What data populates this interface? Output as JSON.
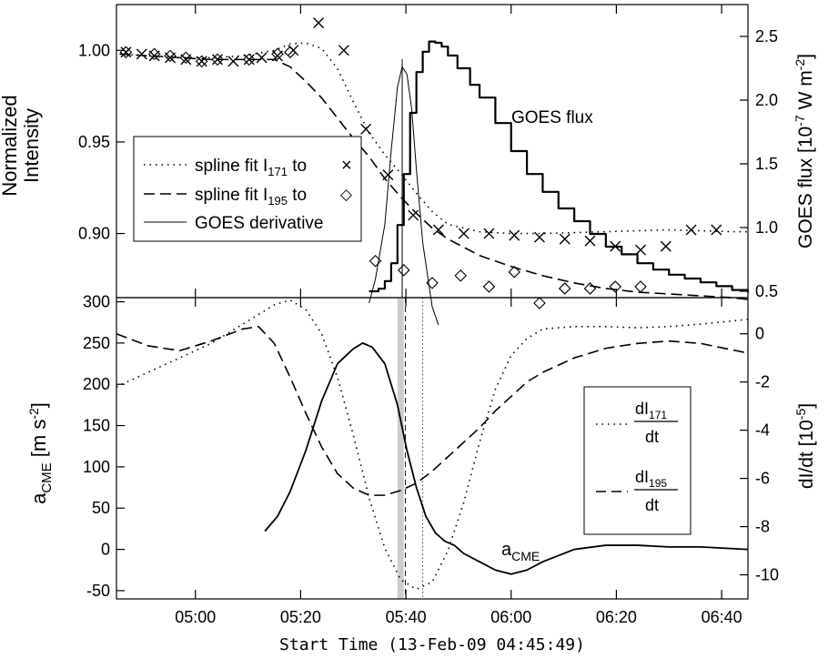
{
  "chart_data": [
    {
      "id": "top",
      "type": "line",
      "ylabel": [
        "Normalized",
        "Intensity"
      ],
      "y2label_prefix": "GOES flux [10",
      "y2label_exp1": "-7",
      "y2label_mid": " W m",
      "y2label_exp2": "-2",
      "y2label_suffix": "]",
      "xlim": [
        4.75,
        6.75
      ],
      "ylim": [
        0.865,
        1.025
      ],
      "y2lim": [
        0.45,
        2.75
      ],
      "yticks": [
        0.9,
        0.95,
        1.0
      ],
      "ytick_labels": [
        "0.90",
        "0.95",
        "1.00"
      ],
      "y2ticks": [
        0.5,
        1.0,
        1.5,
        2.0,
        2.5
      ],
      "y2tick_labels": [
        "0.5",
        "1.0",
        "1.5",
        "2.0",
        "2.5"
      ],
      "legend": {
        "position": "center-left",
        "entries": [
          {
            "style": "dotted",
            "label": "spline fit I",
            "sub": "171",
            "suffix": " to",
            "marker": "×"
          },
          {
            "style": "dashed",
            "label": "spline fit I",
            "sub": "195",
            "suffix": " to",
            "marker": "◇"
          },
          {
            "style": "solid-thin",
            "label": "GOES derivative"
          }
        ]
      },
      "annotation": "GOES flux",
      "series": [
        {
          "style": "dotted",
          "axis": "y",
          "x": [
            4.76,
            4.85,
            4.95,
            5.05,
            5.15,
            5.25,
            5.3,
            5.35,
            5.4,
            5.45,
            5.5,
            5.55,
            5.6,
            5.65,
            5.7,
            5.75,
            5.8,
            5.9,
            6.0,
            6.1,
            6.2,
            6.3,
            6.4,
            6.5,
            6.6,
            6.7,
            6.75
          ],
          "y": [
            0.998,
            0.997,
            0.996,
            0.996,
            0.997,
            1.0,
            1.0035,
            1.004,
            1.001,
            0.99,
            0.972,
            0.955,
            0.943,
            0.933,
            0.922,
            0.912,
            0.905,
            0.901,
            0.9,
            0.9,
            0.9005,
            0.901,
            0.9015,
            0.902,
            0.9015,
            0.901,
            0.901
          ]
        },
        {
          "style": "dashed",
          "axis": "y",
          "x": [
            4.76,
            4.85,
            4.95,
            5.05,
            5.15,
            5.25,
            5.3,
            5.35,
            5.4,
            5.45,
            5.5,
            5.55,
            5.6,
            5.65,
            5.7,
            5.75,
            5.8,
            5.9,
            6.0,
            6.1,
            6.2,
            6.3,
            6.4,
            6.5,
            6.6,
            6.7,
            6.75
          ],
          "y": [
            0.998,
            0.997,
            0.996,
            0.995,
            0.995,
            0.995,
            0.991,
            0.983,
            0.974,
            0.963,
            0.952,
            0.942,
            0.93,
            0.92,
            0.911,
            0.903,
            0.897,
            0.888,
            0.882,
            0.877,
            0.873,
            0.87,
            0.868,
            0.867,
            0.866,
            0.865,
            0.864
          ]
        },
        {
          "style": "solid-thin",
          "axis": "y",
          "x": [
            5.55,
            5.57,
            5.6,
            5.62,
            5.64,
            5.655,
            5.67,
            5.685,
            5.7,
            5.72,
            5.75,
            5.77
          ],
          "y": [
            0.862,
            0.875,
            0.905,
            0.945,
            0.98,
            0.991,
            0.987,
            0.968,
            0.935,
            0.895,
            0.86,
            0.85
          ]
        },
        {
          "style": "thick-step",
          "axis": "y2",
          "x": [
            5.55,
            5.58,
            5.6,
            5.62,
            5.64,
            5.66,
            5.68,
            5.7,
            5.72,
            5.74,
            5.76,
            5.78,
            5.8,
            5.83,
            5.87,
            5.9,
            5.95,
            6.0,
            6.05,
            6.1,
            6.15,
            6.2,
            6.25,
            6.3,
            6.35,
            6.4,
            6.45,
            6.5,
            6.55,
            6.6,
            6.65,
            6.7,
            6.75
          ],
          "y": [
            0.5,
            0.52,
            0.58,
            0.72,
            1.02,
            1.42,
            1.9,
            2.22,
            2.38,
            2.46,
            2.45,
            2.42,
            2.35,
            2.25,
            2.12,
            2.02,
            1.82,
            1.6,
            1.42,
            1.28,
            1.15,
            1.05,
            0.95,
            0.85,
            0.79,
            0.72,
            0.67,
            0.63,
            0.6,
            0.57,
            0.54,
            0.51,
            0.49
          ]
        }
      ],
      "markers": [
        {
          "name": "x-171",
          "symbol": "x",
          "x": [
            4.78,
            4.83,
            4.87,
            4.92,
            4.97,
            5.02,
            5.07,
            5.12,
            5.17,
            5.21,
            5.26,
            5.31,
            5.39,
            5.47,
            5.54,
            5.61,
            5.69,
            5.77,
            5.85,
            5.93,
            6.01,
            6.09,
            6.17,
            6.25,
            6.33,
            6.41,
            6.49,
            6.57,
            6.65
          ],
          "y": [
            0.999,
            0.998,
            0.997,
            0.996,
            0.995,
            0.994,
            0.995,
            0.994,
            0.995,
            0.996,
            0.997,
            1.0,
            1.015,
            1.0,
            0.957,
            0.932,
            0.91,
            0.902,
            0.9,
            0.9,
            0.899,
            0.898,
            0.897,
            0.896,
            0.893,
            0.891,
            0.893,
            0.902,
            0.902
          ]
        },
        {
          "name": "diamond-195",
          "symbol": "diamond",
          "x": [
            4.78,
            4.87,
            4.92,
            4.97,
            5.02,
            5.07,
            5.17,
            5.26,
            5.3,
            5.38,
            5.48,
            5.57,
            5.66,
            5.75,
            5.84,
            5.93,
            6.01,
            6.09,
            6.17,
            6.25,
            6.33,
            6.41
          ],
          "y": [
            0.999,
            0.998,
            0.997,
            0.996,
            0.994,
            0.995,
            0.995,
            0.998,
            0.999,
            0.948,
            0.928,
            0.885,
            0.88,
            0.873,
            0.877,
            0.871,
            0.879,
            0.862,
            0.87,
            0.87,
            0.871,
            0.871
          ]
        }
      ],
      "vlines": [
        {
          "x": 5.655,
          "style": "thin-solid"
        }
      ]
    },
    {
      "id": "bottom",
      "type": "line",
      "ylabel_main": "a",
      "ylabel_sub": "CME",
      "ylabel_unit_pre": " [m s",
      "ylabel_unit_exp": "-2",
      "ylabel_unit_post": "]",
      "y2label_pre": "dI/dt [10",
      "y2label_exp": "-5",
      "y2label_post": "]",
      "xlim": [
        4.75,
        6.75
      ],
      "ylim": [
        -60,
        305
      ],
      "y2lim": [
        -11,
        1.5
      ],
      "yticks": [
        -50,
        0,
        50,
        100,
        150,
        200,
        250,
        300
      ],
      "ytick_labels": [
        "-50",
        "0",
        "50",
        "100",
        "150",
        "200",
        "250",
        "300"
      ],
      "y2ticks": [
        -10,
        -8,
        -6,
        -4,
        -2,
        0
      ],
      "y2tick_labels": [
        "-10",
        "-8",
        "-6",
        "-4",
        "-2",
        "0"
      ],
      "xticks": [
        5.0,
        5.3333,
        5.6667,
        6.0,
        6.3333,
        6.6667
      ],
      "xtick_labels": [
        "05:00",
        "05:20",
        "05:40",
        "06:00",
        "06:20",
        "06:40"
      ],
      "xlabel": "Start Time (13-Feb-09 04:45:49)",
      "legend": {
        "position": "right",
        "entries": [
          {
            "style": "dotted",
            "num": "dI",
            "sub": "171",
            "den": "dt"
          },
          {
            "style": "dashed",
            "num": "dI",
            "sub": "195",
            "den": "dt"
          }
        ]
      },
      "annotation_main": "a",
      "annotation_sub": "CME",
      "series": [
        {
          "style": "solid",
          "axis": "y",
          "x": [
            5.22,
            5.26,
            5.3,
            5.35,
            5.4,
            5.45,
            5.5,
            5.53,
            5.56,
            5.6,
            5.64,
            5.67,
            5.7,
            5.73,
            5.76,
            5.79,
            5.82,
            5.85,
            5.9,
            5.95,
            6.0,
            6.05,
            6.1,
            6.2,
            6.3,
            6.4,
            6.5,
            6.6,
            6.75
          ],
          "y": [
            22,
            40,
            70,
            120,
            180,
            225,
            243,
            250,
            245,
            225,
            175,
            120,
            75,
            40,
            20,
            10,
            5,
            -5,
            -15,
            -25,
            -30,
            -25,
            -15,
            0,
            5,
            5,
            3,
            3,
            0
          ]
        },
        {
          "style": "dotted",
          "axis": "y2",
          "x": [
            4.75,
            4.85,
            4.95,
            5.05,
            5.15,
            5.25,
            5.3,
            5.35,
            5.4,
            5.45,
            5.5,
            5.55,
            5.6,
            5.65,
            5.7,
            5.75,
            5.8,
            5.85,
            5.9,
            5.95,
            6.0,
            6.05,
            6.1,
            6.2,
            6.3,
            6.4,
            6.5,
            6.6,
            6.75
          ],
          "y": [
            -2.2,
            -1.6,
            -1.0,
            -0.4,
            0.4,
            1.2,
            1.4,
            1.0,
            0.0,
            -1.8,
            -4.2,
            -6.8,
            -8.9,
            -10.2,
            -10.6,
            -10.3,
            -9.0,
            -7.0,
            -4.5,
            -2.3,
            -0.9,
            -0.2,
            0.2,
            0.3,
            0.3,
            0.25,
            0.3,
            0.4,
            0.6
          ]
        },
        {
          "style": "dashed",
          "axis": "y2",
          "x": [
            4.75,
            4.85,
            4.95,
            5.05,
            5.15,
            5.2,
            5.25,
            5.3,
            5.35,
            5.4,
            5.45,
            5.5,
            5.55,
            5.6,
            5.65,
            5.7,
            5.75,
            5.8,
            5.85,
            5.9,
            5.95,
            6.0,
            6.05,
            6.1,
            6.2,
            6.3,
            6.4,
            6.5,
            6.6,
            6.75
          ],
          "y": [
            0.0,
            -0.5,
            -0.7,
            -0.3,
            0.2,
            0.3,
            -0.4,
            -1.8,
            -3.3,
            -4.7,
            -5.8,
            -6.4,
            -6.7,
            -6.7,
            -6.5,
            -6.2,
            -5.7,
            -5.1,
            -4.5,
            -3.9,
            -3.2,
            -2.6,
            -2.0,
            -1.6,
            -1.0,
            -0.6,
            -0.4,
            -0.3,
            -0.4,
            -0.8
          ]
        }
      ],
      "shaded_band": {
        "x0": 5.64,
        "x1": 5.66,
        "color": "#cccccc"
      },
      "vlines": [
        {
          "x": 5.665,
          "style": "dashed"
        },
        {
          "x": 5.72,
          "style": "dotted"
        }
      ]
    }
  ]
}
